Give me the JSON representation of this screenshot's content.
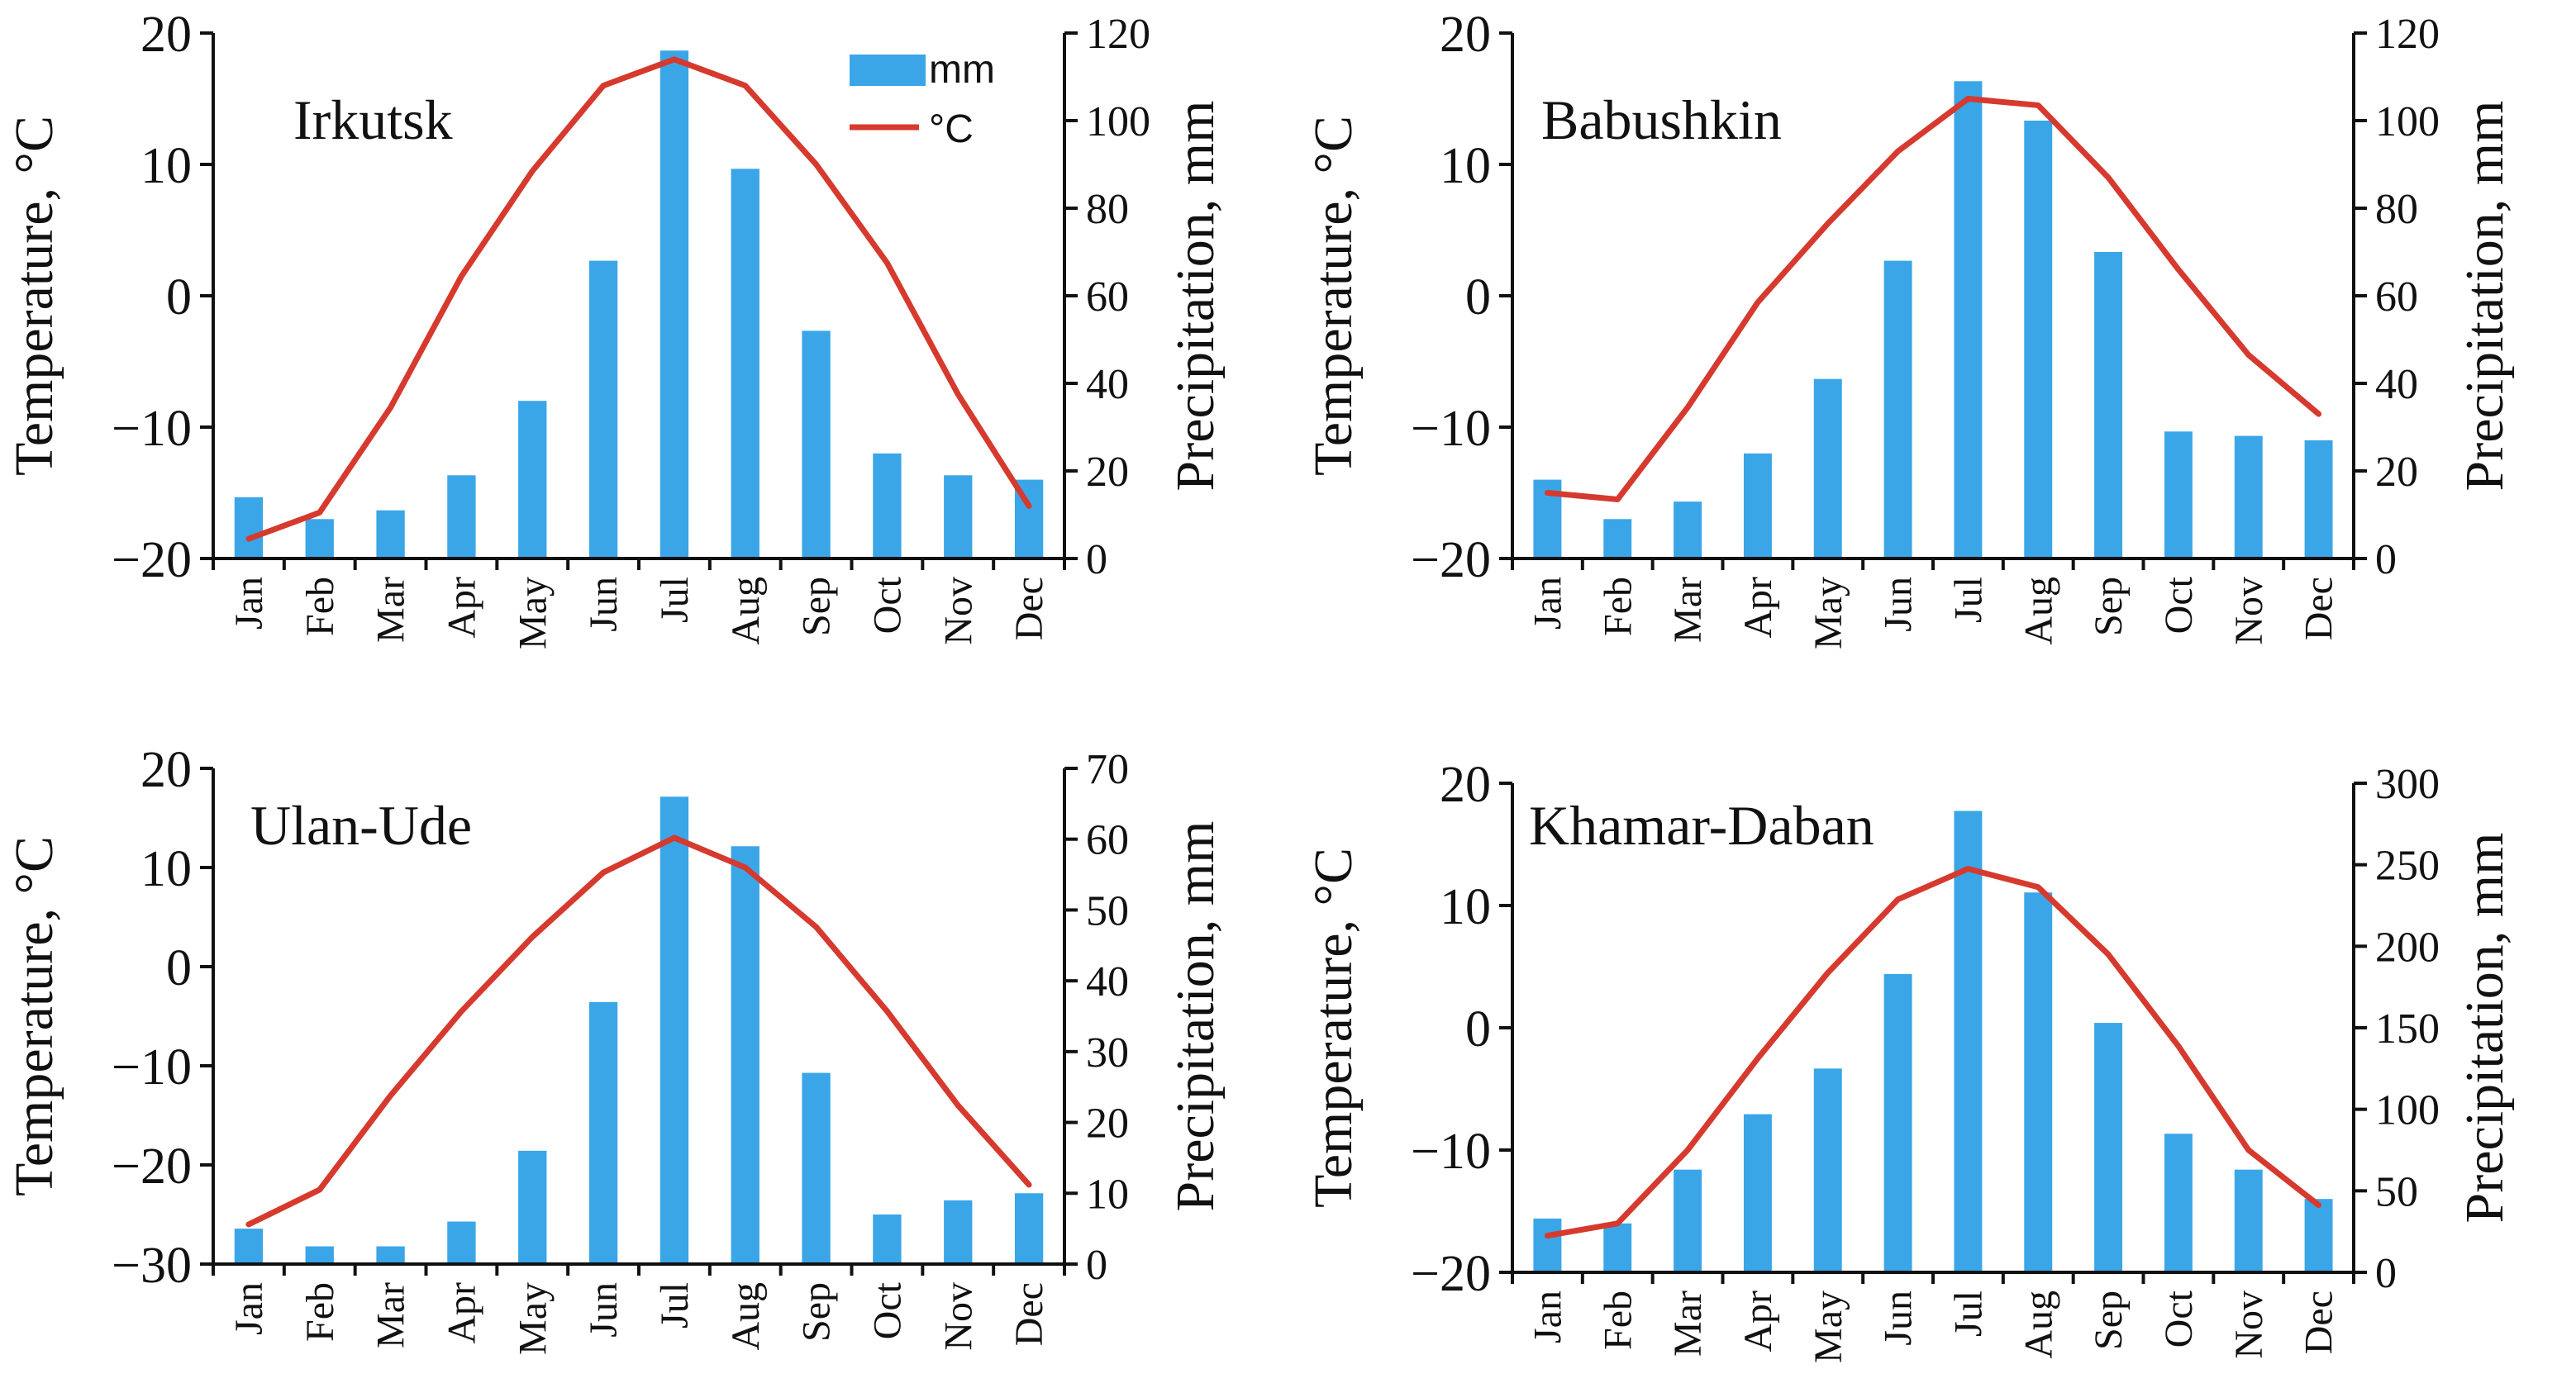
{
  "colors": {
    "bar": "#3aa6e8",
    "line": "#d63a2e",
    "axis": "#111111"
  },
  "chart_data": [
    {
      "type": "bar+line",
      "station": "Irkutsk",
      "categories": [
        "Jan",
        "Feb",
        "Mar",
        "Apr",
        "May",
        "Jun",
        "Jul",
        "Aug",
        "Sep",
        "Oct",
        "Nov",
        "Dec"
      ],
      "precipitation_mm": [
        14,
        9,
        11,
        19,
        36,
        68,
        116,
        89,
        52,
        24,
        19,
        18
      ],
      "temperature_c": [
        -18.5,
        -16.5,
        -8.5,
        1.5,
        9.5,
        16,
        18,
        16,
        10,
        2.5,
        -7.5,
        -16
      ],
      "ylabel_left": "Temperature, °C",
      "ylabel_right": "Precipitation, mm",
      "ylim_left": [
        -20,
        20
      ],
      "ylim_right": [
        0,
        120
      ],
      "yticks_left": [
        "20",
        "10",
        "0",
        "−10",
        "−20"
      ],
      "yticks_right": [
        "120",
        "100",
        "80",
        "60",
        "40",
        "20",
        "0"
      ],
      "legend": {
        "bar": "mm",
        "line": "°C",
        "placement": "top-right"
      }
    },
    {
      "type": "bar+line",
      "station": "Babushkin",
      "categories": [
        "Jan",
        "Feb",
        "Mar",
        "Apr",
        "May",
        "Jun",
        "Jul",
        "Aug",
        "Sep",
        "Oct",
        "Nov",
        "Dec"
      ],
      "precipitation_mm": [
        18,
        9,
        13,
        24,
        41,
        68,
        109,
        100,
        70,
        29,
        28,
        27
      ],
      "temperature_c": [
        -15,
        -15.5,
        -8.5,
        -0.5,
        5.5,
        11,
        15,
        14.5,
        9,
        2,
        -4.5,
        -9
      ],
      "ylabel_left": "Temperature, °C",
      "ylabel_right": "Precipitation, mm",
      "ylim_left": [
        -20,
        20
      ],
      "ylim_right": [
        0,
        120
      ],
      "yticks_left": [
        "20",
        "10",
        "0",
        "−10",
        "−20"
      ],
      "yticks_right": [
        "120",
        "100",
        "80",
        "60",
        "40",
        "20",
        "0"
      ]
    },
    {
      "type": "bar+line",
      "station": "Ulan-Ude",
      "categories": [
        "Jan",
        "Feb",
        "Mar",
        "Apr",
        "May",
        "Jun",
        "Jul",
        "Aug",
        "Sep",
        "Oct",
        "Nov",
        "Dec"
      ],
      "precipitation_mm": [
        5,
        2.5,
        2.5,
        6,
        16,
        37,
        66,
        59,
        27,
        7,
        9,
        10
      ],
      "temperature_c": [
        -26,
        -22.5,
        -13,
        -4.5,
        3,
        9.5,
        13,
        10,
        4,
        -4.5,
        -14,
        -22
      ],
      "ylabel_left": "Temperature, °C",
      "ylabel_right": "Precipitation, mm",
      "ylim_left": [
        -30,
        20
      ],
      "ylim_right": [
        0,
        70
      ],
      "yticks_left": [
        "20",
        "10",
        "0",
        "−10",
        "−20",
        "−30"
      ],
      "yticks_right": [
        "70",
        "60",
        "50",
        "40",
        "30",
        "20",
        "10",
        "0"
      ]
    },
    {
      "type": "bar+line",
      "station": "Khamar-Daban",
      "categories": [
        "Jan",
        "Feb",
        "Mar",
        "Apr",
        "May",
        "Jun",
        "Jul",
        "Aug",
        "Sep",
        "Oct",
        "Nov",
        "Dec"
      ],
      "precipitation_mm": [
        33,
        30,
        63,
        97,
        125,
        183,
        283,
        233,
        153,
        85,
        63,
        45
      ],
      "temperature_c": [
        -17,
        -16,
        -10,
        -2.5,
        4.5,
        10.5,
        13,
        11.5,
        6,
        -1.5,
        -10,
        -14.5
      ],
      "ylabel_left": "Temperature, °C",
      "ylabel_right": "Precipitation, mm",
      "ylim_left": [
        -20,
        20
      ],
      "ylim_right": [
        0,
        300
      ],
      "yticks_left": [
        "20",
        "10",
        "0",
        "−10",
        "−20"
      ],
      "yticks_right": [
        "300",
        "250",
        "200",
        "150",
        "100",
        "50",
        "0"
      ]
    }
  ]
}
